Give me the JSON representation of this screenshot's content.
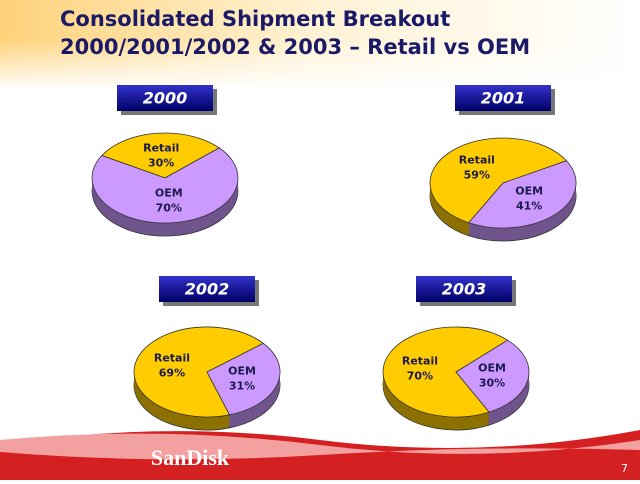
{
  "title": [
    "Consolidated Shipment Breakout",
    "2000/2001/2002 & 2003 – Retail vs OEM"
  ],
  "chart_data": [
    {
      "type": "pie",
      "title": "2000",
      "categories": [
        "Retail",
        "OEM"
      ],
      "values": [
        30,
        70
      ],
      "value_labels": [
        "30%",
        "70%"
      ],
      "colors": [
        "#ffcc00",
        "#cc99ff"
      ]
    },
    {
      "type": "pie",
      "title": "2001",
      "categories": [
        "Retail",
        "OEM"
      ],
      "values": [
        59,
        41
      ],
      "value_labels": [
        "59%",
        "41%"
      ],
      "colors": [
        "#ffcc00",
        "#cc99ff"
      ]
    },
    {
      "type": "pie",
      "title": "2002",
      "categories": [
        "Retail",
        "OEM"
      ],
      "values": [
        69,
        31
      ],
      "value_labels": [
        "69%",
        "31%"
      ],
      "colors": [
        "#ffcc00",
        "#cc99ff"
      ]
    },
    {
      "type": "pie",
      "title": "2003",
      "categories": [
        "Retail",
        "OEM"
      ],
      "values": [
        70,
        30
      ],
      "value_labels": [
        "70%",
        "30%"
      ],
      "colors": [
        "#ffcc00",
        "#cc99ff"
      ]
    }
  ],
  "footer": {
    "logo": "SanDisk",
    "page": "7"
  }
}
